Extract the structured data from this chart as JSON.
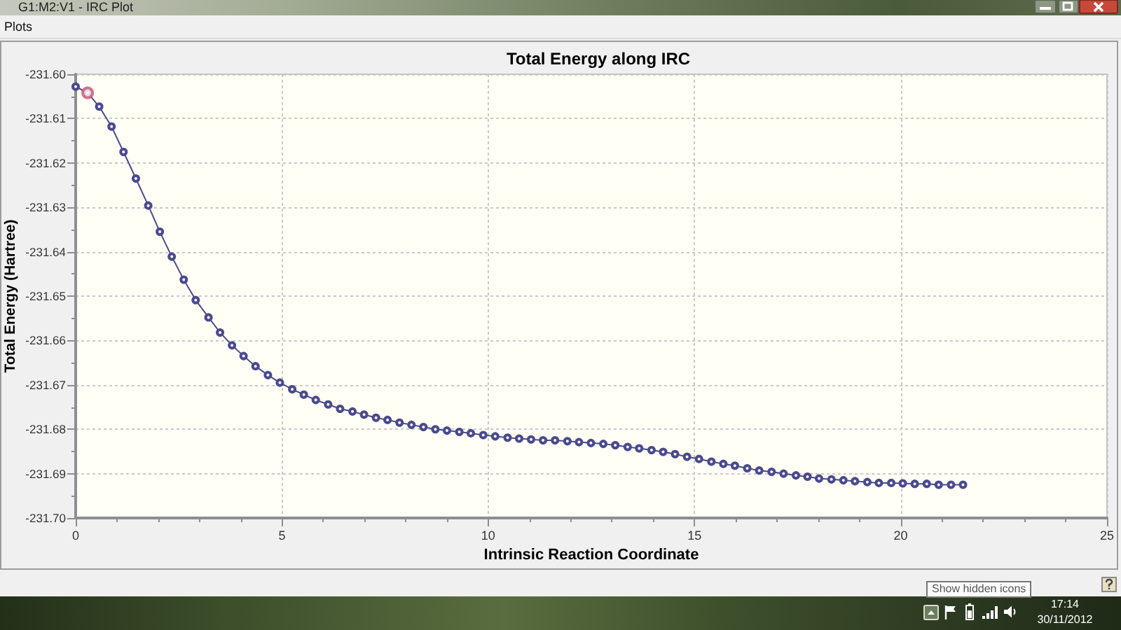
{
  "chart_data": {
    "type": "line",
    "title": "Total Energy along IRC",
    "xlabel": "Intrinsic Reaction Coordinate",
    "ylabel": "Total Energy (Hartree)",
    "x": [
      0,
      0.29,
      0.57,
      0.87,
      1.16,
      1.46,
      1.76,
      2.04,
      2.33,
      2.62,
      2.91,
      3.22,
      3.5,
      3.79,
      4.07,
      4.36,
      4.66,
      4.95,
      5.25,
      5.53,
      5.82,
      6.12,
      6.41,
      6.71,
      6.99,
      7.28,
      7.56,
      7.85,
      8.14,
      8.43,
      8.72,
      9.0,
      9.3,
      9.58,
      9.88,
      10.17,
      10.47,
      10.75,
      11.04,
      11.33,
      11.62,
      11.92,
      12.2,
      12.49,
      12.79,
      13.08,
      13.38,
      13.66,
      13.96,
      14.24,
      14.53,
      14.82,
      15.11,
      15.41,
      15.7,
      15.98,
      16.28,
      16.57,
      16.87,
      17.16,
      17.46,
      17.74,
      18.02,
      18.32,
      18.61,
      18.89,
      19.19,
      19.47,
      19.77,
      20.05,
      20.34,
      20.63,
      20.92,
      21.22,
      21.51
    ],
    "series": [
      {
        "color": "#4a4a8e",
        "values": [
          -231.6028,
          -231.6042,
          -231.6073,
          -231.6118,
          -231.6175,
          -231.6235,
          -231.6296,
          -231.6355,
          -231.6411,
          -231.6463,
          -231.6509,
          -231.6548,
          -231.6582,
          -231.6611,
          -231.6635,
          -231.6658,
          -231.6678,
          -231.6695,
          -231.671,
          -231.6722,
          -231.6734,
          -231.6744,
          -231.6754,
          -231.676,
          -231.6767,
          -231.6774,
          -231.6779,
          -231.6785,
          -231.679,
          -231.6795,
          -231.68,
          -231.6803,
          -231.6806,
          -231.6809,
          -231.6813,
          -231.6816,
          -231.6819,
          -231.6821,
          -231.6823,
          -231.6825,
          -231.6825,
          -231.6827,
          -231.6829,
          -231.6831,
          -231.6833,
          -231.6836,
          -231.684,
          -231.6843,
          -231.6847,
          -231.6851,
          -231.6856,
          -231.6862,
          -231.6867,
          -231.6873,
          -231.6878,
          -231.6882,
          -231.6888,
          -231.6893,
          -231.6896,
          -231.69,
          -231.6904,
          -231.6907,
          -231.6911,
          -231.6913,
          -231.6915,
          -231.6917,
          -231.6919,
          -231.6921,
          -231.6921,
          -231.6922,
          -231.6923,
          -231.6923,
          -231.6925,
          -231.6925,
          -231.6925
        ]
      },
      {
        "type": "scatter",
        "color": "#c8506e",
        "x": [
          0.29
        ],
        "values": [
          -231.6042
        ]
      }
    ],
    "xlim": [
      0,
      25
    ],
    "ylim": [
      -231.7,
      -231.6
    ],
    "xticks": [
      0,
      {
        "value": 1,
        "label": null
      },
      {
        "value": 2,
        "label": null
      },
      {
        "value": 3,
        "label": null
      },
      {
        "value": 4,
        "label": null
      },
      5,
      {
        "value": 6,
        "label": null
      },
      {
        "value": 7,
        "label": null
      },
      {
        "value": 8,
        "label": null
      },
      {
        "value": 9,
        "label": null
      },
      10,
      {
        "value": 11,
        "label": null
      },
      {
        "value": 12,
        "label": null
      },
      {
        "value": 13,
        "label": null
      },
      {
        "value": 14,
        "label": null
      },
      15,
      {
        "value": 16,
        "label": null
      },
      {
        "value": 17,
        "label": null
      },
      {
        "value": 18,
        "label": null
      },
      {
        "value": 19,
        "label": null
      },
      20,
      {
        "value": 21,
        "label": null
      },
      {
        "value": 22,
        "label": null
      },
      {
        "value": 23,
        "label": null
      },
      {
        "value": 24,
        "label": null
      },
      25
    ],
    "yticks": [
      {
        "value": -231.7,
        "label": "-231.70"
      },
      {
        "value": -231.695,
        "label": null
      },
      -231.69,
      {
        "value": -231.685,
        "label": null
      },
      -231.68,
      {
        "value": -231.675,
        "label": null
      },
      -231.67,
      {
        "value": -231.665,
        "label": null
      },
      -231.66,
      {
        "value": -231.655,
        "label": null
      },
      -231.65,
      {
        "value": -231.645,
        "label": null
      },
      -231.64,
      {
        "value": -231.635,
        "label": null
      },
      -231.63,
      {
        "value": -231.625,
        "label": null
      },
      -231.62,
      {
        "value": -231.615,
        "label": null
      },
      -231.61,
      {
        "value": -231.605,
        "label": null
      },
      {
        "value": -231.6,
        "label": "-231.60"
      }
    ],
    "grid": true,
    "marker": "circle",
    "line_style": "solid",
    "annotations": [
      "G1:M2:V1 - IRC Plot",
      "Plots",
      "Show hidden icons",
      "17:14",
      "30/11/2012"
    ]
  }
}
